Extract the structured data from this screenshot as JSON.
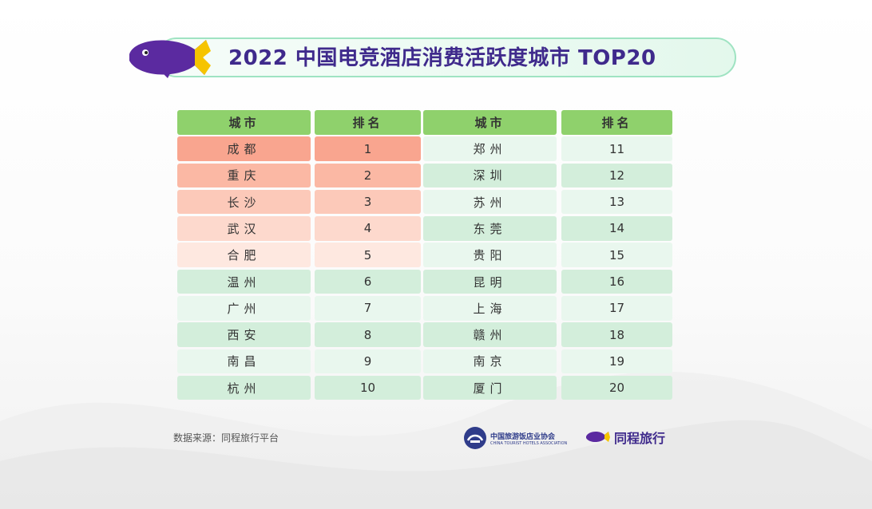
{
  "title": "2022 中国电竞酒店消费活跃度城市 TOP20",
  "tables": [
    {
      "header": {
        "city": "城市",
        "rank": "排名"
      },
      "rows": [
        {
          "city": "成都",
          "rank": "1"
        },
        {
          "city": "重庆",
          "rank": "2"
        },
        {
          "city": "长沙",
          "rank": "3"
        },
        {
          "city": "武汉",
          "rank": "4"
        },
        {
          "city": "合肥",
          "rank": "5"
        },
        {
          "city": "温州",
          "rank": "6"
        },
        {
          "city": "广州",
          "rank": "7"
        },
        {
          "city": "西安",
          "rank": "8"
        },
        {
          "city": "南昌",
          "rank": "9"
        },
        {
          "city": "杭州",
          "rank": "10"
        }
      ]
    },
    {
      "header": {
        "city": "城市",
        "rank": "排名"
      },
      "rows": [
        {
          "city": "郑州",
          "rank": "11"
        },
        {
          "city": "深圳",
          "rank": "12"
        },
        {
          "city": "苏州",
          "rank": "13"
        },
        {
          "city": "东莞",
          "rank": "14"
        },
        {
          "city": "贵阳",
          "rank": "15"
        },
        {
          "city": "昆明",
          "rank": "16"
        },
        {
          "city": "上海",
          "rank": "17"
        },
        {
          "city": "赣州",
          "rank": "18"
        },
        {
          "city": "南京",
          "rank": "19"
        },
        {
          "city": "厦门",
          "rank": "20"
        }
      ]
    }
  ],
  "footer": {
    "source": "数据来源：同程旅行平台",
    "association": "中国旅游饭店业协会",
    "association_sub": "CHINA TOURIST HOTELS ASSOCIATION",
    "brand": "同程旅行"
  },
  "colors": {
    "header_green": "#8fd16c",
    "top5_reds": [
      "#f9a58f",
      "#fbb8a4",
      "#fcc9b9",
      "#fdd9cd",
      "#fee8e0"
    ],
    "row_greens": [
      "#d3eedb",
      "#e9f7ee"
    ],
    "title_purple": "#3f2a8c",
    "logo_purple": "#5b2aa0",
    "logo_yellow": "#f6c400"
  }
}
